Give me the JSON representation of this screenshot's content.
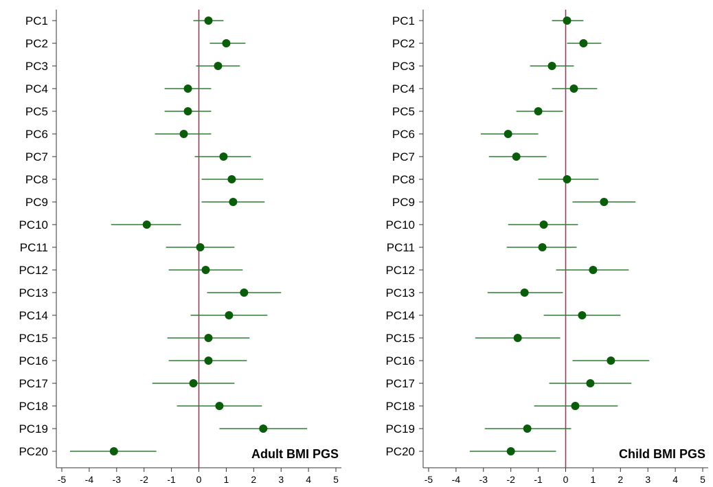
{
  "chart_data": [
    {
      "type": "forest",
      "title": "Adult BMI PGS",
      "categories": [
        "PC1",
        "PC2",
        "PC3",
        "PC4",
        "PC5",
        "PC6",
        "PC7",
        "PC8",
        "PC9",
        "PC10",
        "PC11",
        "PC12",
        "PC13",
        "PC14",
        "PC15",
        "PC16",
        "PC17",
        "PC18",
        "PC19",
        "PC20"
      ],
      "estimates": [
        0.35,
        1.0,
        0.7,
        -0.4,
        -0.4,
        -0.55,
        0.9,
        1.2,
        1.25,
        -1.9,
        0.05,
        0.25,
        1.65,
        1.1,
        0.35,
        0.35,
        -0.2,
        0.75,
        2.35,
        -3.1
      ],
      "lower": [
        -0.2,
        0.4,
        -0.1,
        -1.25,
        -1.25,
        -1.6,
        -0.15,
        0.1,
        0.1,
        -3.2,
        -1.2,
        -1.1,
        0.3,
        -0.3,
        -1.15,
        -1.1,
        -1.7,
        -0.8,
        0.75,
        -4.7
      ],
      "upper": [
        0.9,
        1.7,
        1.5,
        0.45,
        0.45,
        0.45,
        1.9,
        2.35,
        2.4,
        -0.65,
        1.3,
        1.6,
        3.0,
        2.5,
        1.85,
        1.75,
        1.3,
        2.3,
        3.95,
        -1.55
      ],
      "xlim": [
        -5.2,
        5.2
      ],
      "xticks": [
        "-5",
        "-4",
        "-3",
        "-2",
        "-1",
        "0",
        "1",
        "2",
        "3",
        "4",
        "5"
      ],
      "reference_line": 0,
      "marker_color": "#0b5d0b",
      "ci_color": "#2e7d32",
      "reference_color": "#a0385a"
    },
    {
      "type": "forest",
      "title": "Child BMI PGS",
      "categories": [
        "PC1",
        "PC2",
        "PC3",
        "PC4",
        "PC5",
        "PC6",
        "PC7",
        "PC8",
        "PC9",
        "PC10",
        "PC11",
        "PC12",
        "PC13",
        "PC14",
        "PC15",
        "PC16",
        "PC17",
        "PC18",
        "PC19",
        "PC20"
      ],
      "estimates": [
        0.05,
        0.65,
        -0.5,
        0.3,
        -1.0,
        -2.1,
        -1.8,
        0.05,
        1.4,
        -0.8,
        -0.85,
        1.0,
        -1.5,
        0.6,
        -1.75,
        1.65,
        0.9,
        0.35,
        -1.4,
        -2.0
      ],
      "lower": [
        -0.5,
        0.05,
        -1.3,
        -0.5,
        -1.8,
        -3.1,
        -2.8,
        -1.0,
        0.25,
        -2.1,
        -2.15,
        -0.35,
        -2.85,
        -0.8,
        -3.3,
        0.25,
        -0.6,
        -1.15,
        -2.95,
        -3.5
      ],
      "upper": [
        0.65,
        1.3,
        0.3,
        1.15,
        -0.1,
        -1.0,
        -0.7,
        1.2,
        2.55,
        0.45,
        0.4,
        2.3,
        -0.1,
        2.0,
        -0.2,
        3.05,
        2.4,
        1.9,
        0.2,
        -0.35
      ],
      "xlim": [
        -5.2,
        5.2
      ],
      "xticks": [
        "-5",
        "-4",
        "-3",
        "-2",
        "-1",
        "0",
        "1",
        "2",
        "3",
        "4",
        "5"
      ],
      "reference_line": 0,
      "marker_color": "#0b5d0b",
      "ci_color": "#2e7d32",
      "reference_color": "#a0385a"
    }
  ]
}
